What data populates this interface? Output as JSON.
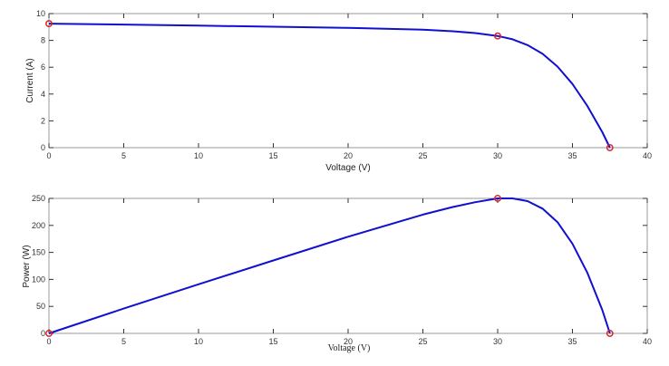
{
  "chart_data": [
    {
      "type": "line",
      "xlabel": "Voltage (V)",
      "ylabel": "Current (A)",
      "xlim": [
        0,
        40
      ],
      "ylim": [
        0,
        10
      ],
      "xticks": [
        0,
        5,
        10,
        15,
        20,
        25,
        30,
        35,
        40
      ],
      "yticks": [
        0,
        2,
        4,
        6,
        8,
        10
      ],
      "series": [
        {
          "color": "#1010d0",
          "x": [
            0,
            5,
            10,
            15,
            20,
            25,
            27,
            28.5,
            30,
            31,
            32,
            33,
            34,
            35,
            36,
            37,
            37.5
          ],
          "y": [
            9.25,
            9.18,
            9.1,
            9.02,
            8.93,
            8.8,
            8.68,
            8.55,
            8.33,
            8.08,
            7.65,
            7.0,
            6.05,
            4.75,
            3.1,
            1.15,
            0
          ]
        }
      ],
      "markers": {
        "color": "#d62728",
        "points": [
          [
            0,
            9.25
          ],
          [
            30,
            8.33
          ],
          [
            37.5,
            0
          ]
        ]
      }
    },
    {
      "type": "line",
      "xlabel": "Voltage (V)",
      "ylabel": "Power (W)",
      "xlim": [
        0,
        40
      ],
      "ylim": [
        0,
        250
      ],
      "xticks": [
        0,
        5,
        10,
        15,
        20,
        25,
        30,
        35,
        40
      ],
      "yticks": [
        0,
        50,
        100,
        150,
        200,
        250
      ],
      "series": [
        {
          "color": "#1010d0",
          "x": [
            0,
            5,
            10,
            15,
            20,
            25,
            27,
            28.5,
            30,
            31,
            32,
            33,
            34,
            35,
            36,
            37,
            37.5
          ],
          "y": [
            0,
            46,
            91,
            135,
            179,
            220,
            234,
            243,
            250,
            250,
            245,
            231,
            206,
            166,
            112,
            43,
            0
          ]
        }
      ],
      "markers": {
        "color": "#d62728",
        "points": [
          [
            0,
            0
          ],
          [
            30,
            250
          ],
          [
            37.5,
            0
          ]
        ]
      }
    }
  ]
}
